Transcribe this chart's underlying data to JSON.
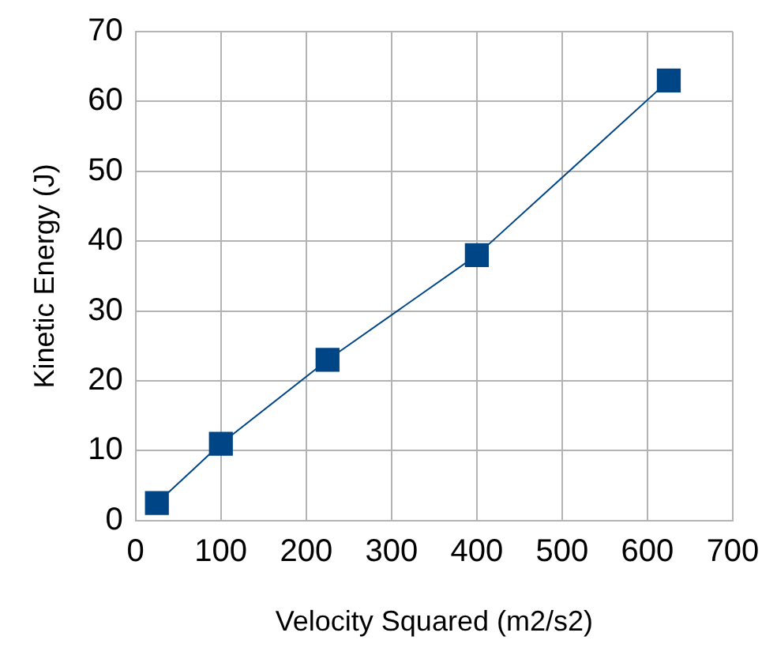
{
  "chart_data": {
    "type": "line",
    "xlabel": "Velocity Squared (m2/s2)",
    "ylabel": "Kinetic Energy (J)",
    "x": [
      25,
      100,
      225,
      400,
      625
    ],
    "series": [
      {
        "color": "#004586",
        "values": [
          2.5,
          11,
          23,
          38,
          63
        ]
      }
    ],
    "xlim": [
      0,
      700
    ],
    "xticks": [
      0,
      100,
      200,
      300,
      400,
      500,
      600,
      700
    ],
    "ylim": [
      0,
      70
    ],
    "yticks": [
      0,
      10,
      20,
      30,
      40,
      50,
      60,
      70
    ],
    "grid": true,
    "legend": false,
    "marker": "square",
    "line_style": "solid"
  }
}
